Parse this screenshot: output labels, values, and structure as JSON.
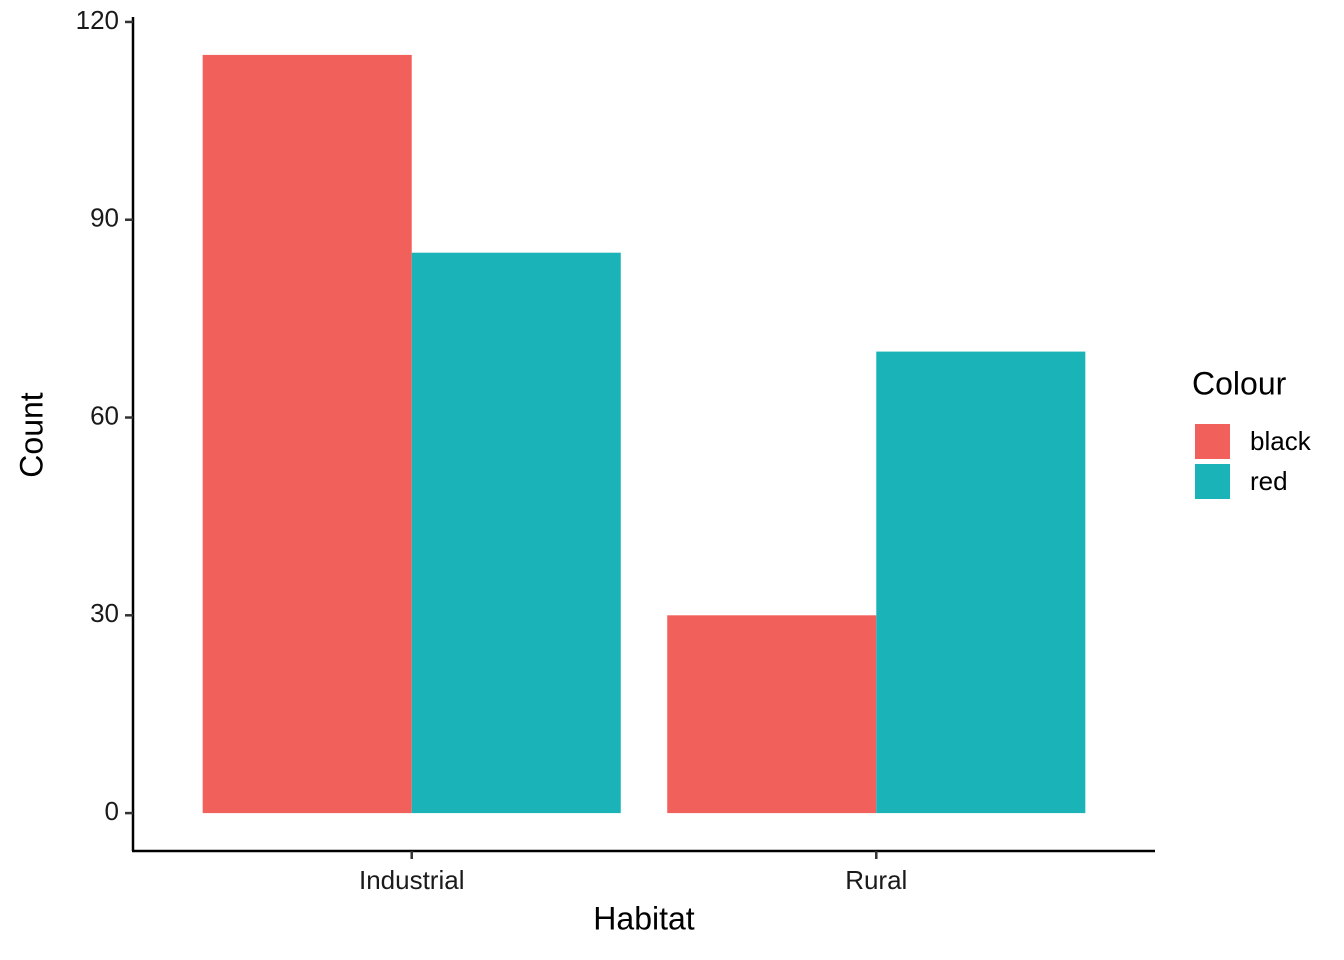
{
  "chart_data": {
    "type": "bar",
    "x_label": "Habitat",
    "y_label": "Count",
    "categories": [
      "Industrial",
      "Rural"
    ],
    "legend_title": "Colour",
    "series": [
      {
        "name": "black",
        "color": "#f2605b",
        "values": [
          115,
          30
        ]
      },
      {
        "name": "red",
        "color": "#1ab4b8",
        "values": [
          85,
          70
        ]
      }
    ],
    "ylim": [
      -5.75,
      120.75
    ],
    "yticks": [
      0,
      30,
      60,
      90,
      120
    ],
    "grid": false,
    "legend": "right"
  }
}
